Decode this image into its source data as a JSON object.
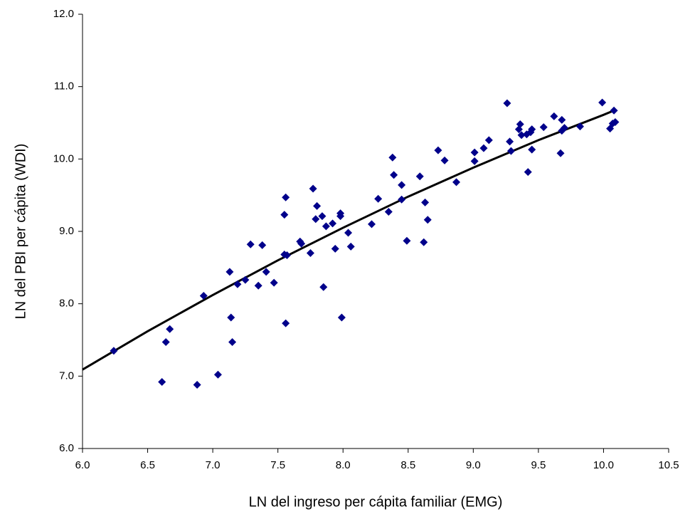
{
  "chart_data": {
    "type": "scatter",
    "x_label": "LN del ingreso per cápita familiar (EMG)",
    "y_label": "LN del PBI per cápita (WDI)",
    "xlim": [
      6.0,
      10.5
    ],
    "ylim": [
      6.0,
      12.0
    ],
    "xticks": [
      {
        "value": 6.0,
        "label": "6.0"
      },
      {
        "value": 6.5,
        "label": "6.5"
      },
      {
        "value": 7.0,
        "label": "7.0"
      },
      {
        "value": 7.5,
        "label": "7.5"
      },
      {
        "value": 8.0,
        "label": "8.0"
      },
      {
        "value": 8.5,
        "label": "8.5"
      },
      {
        "value": 9.0,
        "label": "9.0"
      },
      {
        "value": 9.5,
        "label": "9.5"
      },
      {
        "value": 10.0,
        "label": "10.0"
      },
      {
        "value": 10.5,
        "label": "10.5"
      }
    ],
    "yticks": [
      {
        "value": 6.0,
        "label": "6.0"
      },
      {
        "value": 7.0,
        "label": "7.0"
      },
      {
        "value": 8.0,
        "label": "8.0"
      },
      {
        "value": 9.0,
        "label": "9.0"
      },
      {
        "value": 10.0,
        "label": "10.0"
      },
      {
        "value": 11.0,
        "label": "11.0"
      },
      {
        "value": 12.0,
        "label": "12.0"
      }
    ],
    "color": "#00008b",
    "x": [
      6.24,
      6.61,
      6.64,
      6.67,
      6.88,
      6.93,
      7.04,
      7.13,
      7.14,
      7.15,
      7.19,
      7.25,
      7.29,
      7.35,
      7.38,
      7.41,
      7.47,
      7.55,
      7.56,
      7.55,
      7.57,
      7.56,
      7.67,
      7.68,
      7.75,
      7.77,
      7.79,
      7.8,
      7.84,
      7.85,
      7.87,
      7.92,
      7.94,
      7.98,
      7.98,
      7.99,
      8.04,
      8.06,
      8.22,
      8.27,
      8.35,
      8.38,
      8.39,
      8.45,
      8.45,
      8.49,
      8.59,
      8.63,
      8.65,
      8.62,
      8.73,
      8.78,
      8.87,
      9.01,
      9.01,
      9.08,
      9.12,
      9.26,
      9.28,
      9.29,
      9.35,
      9.36,
      9.37,
      9.41,
      9.44,
      9.45,
      9.42,
      9.45,
      9.54,
      9.62,
      9.68,
      9.67,
      9.68,
      9.7,
      9.82,
      10.05,
      10.07,
      10.09,
      9.99,
      10.08
    ],
    "values": [
      7.35,
      6.92,
      7.47,
      7.65,
      6.88,
      8.11,
      7.02,
      8.44,
      7.81,
      7.47,
      8.27,
      8.33,
      8.82,
      8.25,
      8.81,
      8.44,
      8.29,
      9.23,
      9.47,
      8.68,
      8.67,
      7.73,
      8.86,
      8.83,
      8.7,
      9.59,
      9.17,
      9.35,
      9.21,
      8.23,
      9.07,
      9.11,
      8.76,
      9.25,
      9.21,
      7.81,
      8.98,
      8.79,
      9.1,
      9.45,
      9.27,
      10.02,
      9.78,
      9.64,
      9.44,
      8.87,
      9.76,
      9.4,
      9.16,
      8.85,
      10.12,
      9.98,
      9.68,
      10.09,
      9.97,
      10.15,
      10.26,
      10.77,
      10.24,
      10.11,
      10.41,
      10.48,
      10.33,
      10.34,
      10.37,
      10.41,
      9.82,
      10.13,
      10.44,
      10.59,
      10.54,
      10.08,
      10.39,
      10.43,
      10.45,
      10.42,
      10.49,
      10.51,
      10.78,
      10.67
    ],
    "trendline": {
      "color": "#000000",
      "x": [
        6.0,
        6.5,
        7.0,
        7.5,
        8.0,
        8.5,
        9.0,
        9.5,
        10.0,
        10.08
      ],
      "values": [
        7.09,
        7.62,
        8.12,
        8.6,
        9.05,
        9.48,
        9.88,
        10.26,
        10.61,
        10.67
      ]
    }
  }
}
